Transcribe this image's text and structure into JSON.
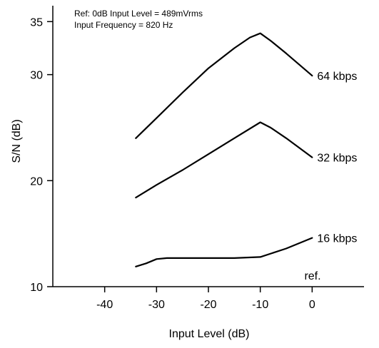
{
  "chart_data": {
    "type": "line",
    "xlabel": "Input Level (dB)",
    "ylabel": "S/N (dB)",
    "annotations": [
      "Ref: 0dB Input Level = 489mVrms",
      "Input Frequency = 820 Hz"
    ],
    "ref_label": "ref.",
    "xlim": [
      -50,
      10
    ],
    "ylim": [
      10,
      36.5
    ],
    "x_ticks": [
      -40,
      -30,
      -20,
      -10,
      0
    ],
    "x_tick_labels": [
      "-40",
      "-30",
      "-20",
      "-10",
      "0"
    ],
    "y_ticks": [
      10,
      20,
      30,
      35
    ],
    "y_tick_labels": [
      "10",
      "20",
      "30",
      "35"
    ],
    "grid": false,
    "series": [
      {
        "name": "64 kbps",
        "x": [
          -34,
          -30,
          -25,
          -20,
          -15,
          -12,
          -10,
          -8,
          -5,
          0
        ],
        "y": [
          24.0,
          25.9,
          28.3,
          30.6,
          32.5,
          33.5,
          33.9,
          33.2,
          32.0,
          29.9
        ]
      },
      {
        "name": "32 kbps",
        "x": [
          -34,
          -30,
          -25,
          -20,
          -15,
          -10,
          -8,
          -5,
          0
        ],
        "y": [
          18.4,
          19.6,
          21.0,
          22.5,
          24.0,
          25.5,
          25.0,
          24.0,
          22.2
        ]
      },
      {
        "name": "16 kbps",
        "x": [
          -34,
          -32,
          -30,
          -28,
          -25,
          -20,
          -15,
          -10,
          -5,
          0
        ],
        "y": [
          11.9,
          12.2,
          12.6,
          12.7,
          12.7,
          12.7,
          12.7,
          12.8,
          13.6,
          14.6
        ]
      }
    ]
  }
}
